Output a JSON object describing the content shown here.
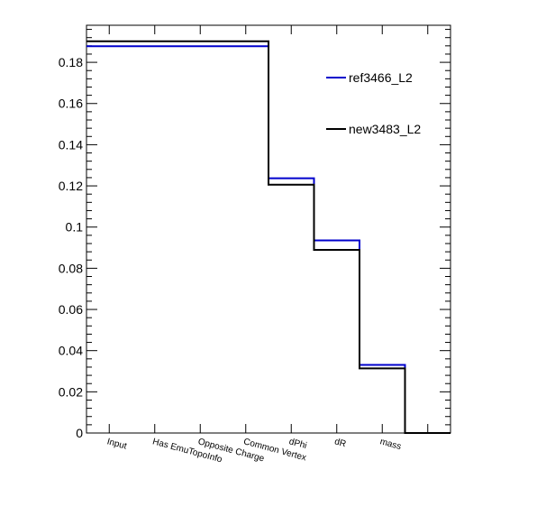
{
  "chart_data": {
    "type": "step",
    "categories": [
      "Input",
      "Has EmuTopoInfo",
      "Opposite Charge",
      "Common Vertex",
      "dPhi",
      "dR",
      "mass",
      ""
    ],
    "ylim": [
      0,
      0.198
    ],
    "yticks": [
      0,
      0.02,
      0.04,
      0.06,
      0.08,
      0.1,
      0.12,
      0.14,
      0.16,
      0.18
    ],
    "ytick_labels": [
      "0",
      "0.02",
      "0.04",
      "0.06",
      "0.08",
      "0.1",
      "0.12",
      "0.14",
      "0.16",
      "0.18"
    ],
    "grid": false,
    "legend_position": "top-right",
    "series": [
      {
        "name": "ref3466_L2",
        "color": "#0000cc",
        "values": [
          0.1878,
          0.1878,
          0.1878,
          0.1878,
          0.1237,
          0.0935,
          0.0331,
          0
        ]
      },
      {
        "name": "new3483_L2",
        "color": "#000000",
        "values": [
          0.1902,
          0.1902,
          0.1902,
          0.1902,
          0.1206,
          0.0889,
          0.0314,
          0
        ]
      }
    ]
  }
}
